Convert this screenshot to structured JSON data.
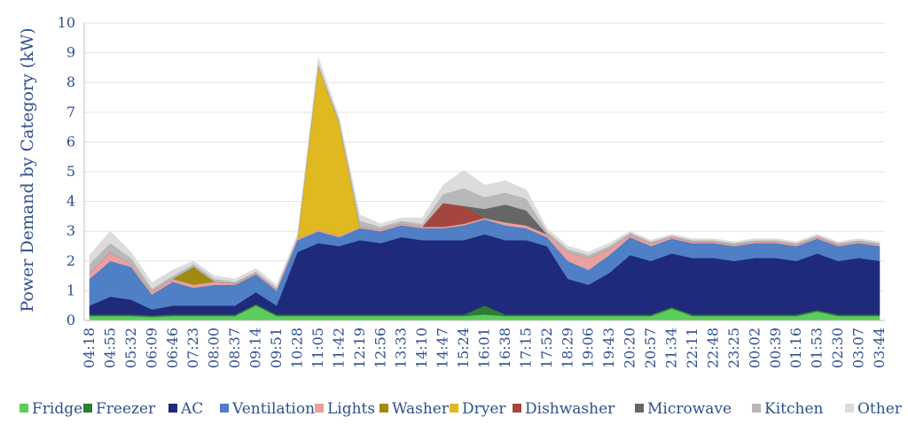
{
  "chart_data": {
    "type": "area",
    "ylabel": "Power Demand by Category (kW)",
    "ylim": [
      0,
      10
    ],
    "yticks": [
      "0",
      "1",
      "2",
      "3",
      "4",
      "5",
      "6",
      "7",
      "8",
      "9",
      "10"
    ],
    "grid": true,
    "legend_position": "bottom",
    "categories": [
      "04:18",
      "04:55",
      "05:32",
      "06:09",
      "06:46",
      "07:23",
      "08:00",
      "08:37",
      "09:14",
      "09:51",
      "10:28",
      "11:05",
      "11:42",
      "12:19",
      "12:56",
      "13:33",
      "14:10",
      "14:47",
      "15:24",
      "16:01",
      "16:38",
      "17:15",
      "17:52",
      "18:29",
      "19:06",
      "19:43",
      "20:20",
      "20:57",
      "21:34",
      "22:11",
      "22:48",
      "23:25",
      "00:02",
      "00:39",
      "01:16",
      "01:53",
      "02:30",
      "03:07",
      "03:44"
    ],
    "series": [
      {
        "name": "Fridge",
        "color": "#5ccc5c",
        "values": [
          0.15,
          0.15,
          0.15,
          0.12,
          0.15,
          0.15,
          0.15,
          0.15,
          0.5,
          0.15,
          0.15,
          0.15,
          0.15,
          0.15,
          0.15,
          0.15,
          0.15,
          0.15,
          0.15,
          0.2,
          0.15,
          0.15,
          0.15,
          0.15,
          0.15,
          0.15,
          0.15,
          0.15,
          0.4,
          0.15,
          0.15,
          0.15,
          0.15,
          0.15,
          0.15,
          0.3,
          0.15,
          0.15,
          0.15
        ]
      },
      {
        "name": "Freezer",
        "color": "#2e7d32",
        "values": [
          0.05,
          0.05,
          0.05,
          0.05,
          0.05,
          0.05,
          0.05,
          0.05,
          0.05,
          0.05,
          0.05,
          0.05,
          0.05,
          0.05,
          0.05,
          0.05,
          0.05,
          0.05,
          0.05,
          0.3,
          0.05,
          0.05,
          0.05,
          0.05,
          0.05,
          0.05,
          0.05,
          0.05,
          0.05,
          0.05,
          0.05,
          0.05,
          0.05,
          0.05,
          0.05,
          0.05,
          0.05,
          0.05,
          0.05
        ]
      },
      {
        "name": "AC",
        "color": "#1f2a7a",
        "values": [
          0.3,
          0.6,
          0.5,
          0.2,
          0.3,
          0.3,
          0.3,
          0.3,
          0.4,
          0.3,
          2.1,
          2.4,
          2.3,
          2.5,
          2.4,
          2.6,
          2.5,
          2.5,
          2.5,
          2.4,
          2.5,
          2.5,
          2.3,
          1.2,
          1.0,
          1.4,
          2.0,
          1.8,
          1.8,
          1.9,
          1.9,
          1.8,
          1.9,
          1.9,
          1.8,
          1.9,
          1.8,
          1.9,
          1.8
        ]
      },
      {
        "name": "Ventilation",
        "color": "#4f7fc4",
        "values": [
          0.9,
          1.2,
          1.1,
          0.5,
          0.8,
          0.6,
          0.7,
          0.7,
          0.6,
          0.5,
          0.4,
          0.4,
          0.3,
          0.4,
          0.4,
          0.4,
          0.4,
          0.4,
          0.5,
          0.5,
          0.5,
          0.4,
          0.3,
          0.6,
          0.5,
          0.6,
          0.6,
          0.5,
          0.5,
          0.5,
          0.5,
          0.5,
          0.5,
          0.5,
          0.5,
          0.5,
          0.5,
          0.5,
          0.5
        ]
      },
      {
        "name": "Lights",
        "color": "#e8a0a0",
        "values": [
          0.2,
          0.3,
          0.1,
          0.1,
          0.1,
          0.1,
          0.1,
          0.05,
          0.05,
          0.05,
          0.05,
          0.05,
          0.05,
          0.05,
          0.05,
          0.05,
          0.05,
          0.05,
          0.05,
          0.05,
          0.1,
          0.1,
          0.1,
          0.3,
          0.4,
          0.2,
          0.1,
          0.1,
          0.05,
          0.05,
          0.05,
          0.05,
          0.05,
          0.05,
          0.05,
          0.05,
          0.05,
          0.05,
          0.05
        ]
      },
      {
        "name": "Washer",
        "color": "#a08a10",
        "values": [
          0,
          0,
          0,
          0,
          0,
          0.6,
          0,
          0,
          0,
          0,
          0,
          0,
          0,
          0,
          0,
          0,
          0,
          0,
          0,
          0,
          0,
          0,
          0,
          0,
          0,
          0,
          0,
          0,
          0,
          0,
          0,
          0,
          0,
          0,
          0,
          0,
          0,
          0,
          0
        ]
      },
      {
        "name": "Dryer",
        "color": "#e0b820",
        "values": [
          0,
          0,
          0,
          0,
          0,
          0,
          0,
          0,
          0,
          0,
          0,
          5.5,
          3.8,
          0,
          0,
          0,
          0,
          0,
          0,
          0,
          0,
          0,
          0,
          0,
          0,
          0,
          0,
          0,
          0,
          0,
          0,
          0,
          0,
          0,
          0,
          0,
          0,
          0,
          0
        ]
      },
      {
        "name": "Dishwasher",
        "color": "#a4463e",
        "values": [
          0,
          0,
          0,
          0,
          0,
          0,
          0,
          0,
          0,
          0,
          0,
          0,
          0,
          0,
          0,
          0,
          0,
          0.8,
          0.6,
          0,
          0,
          0,
          0,
          0,
          0,
          0,
          0,
          0,
          0,
          0,
          0,
          0,
          0,
          0,
          0,
          0,
          0,
          0,
          0
        ]
      },
      {
        "name": "Microwave",
        "color": "#666666",
        "values": [
          0,
          0,
          0,
          0,
          0,
          0,
          0,
          0,
          0,
          0,
          0,
          0,
          0,
          0,
          0,
          0,
          0,
          0,
          0,
          0.3,
          0.6,
          0.5,
          0,
          0,
          0,
          0,
          0,
          0,
          0,
          0,
          0,
          0,
          0,
          0,
          0,
          0,
          0,
          0,
          0
        ]
      },
      {
        "name": "Kitchen",
        "color": "#b8b8b8",
        "values": [
          0.3,
          0.3,
          0.2,
          0.1,
          0.1,
          0.1,
          0.1,
          0.05,
          0.05,
          0.05,
          0.05,
          0.1,
          0.1,
          0.2,
          0.1,
          0.1,
          0.1,
          0.3,
          0.6,
          0.4,
          0.4,
          0.4,
          0.1,
          0.1,
          0.1,
          0.1,
          0.05,
          0.05,
          0.05,
          0.05,
          0.05,
          0.05,
          0.05,
          0.05,
          0.05,
          0.05,
          0.05,
          0.05,
          0.05
        ]
      },
      {
        "name": "Other",
        "color": "#dcdcdc",
        "values": [
          0.3,
          0.4,
          0.2,
          0.2,
          0.2,
          0.1,
          0.1,
          0.1,
          0.1,
          0.1,
          0.1,
          0.2,
          0.1,
          0.2,
          0.1,
          0.1,
          0.2,
          0.3,
          0.6,
          0.4,
          0.4,
          0.3,
          0.1,
          0.1,
          0.1,
          0.1,
          0.05,
          0.05,
          0.05,
          0.05,
          0.05,
          0.05,
          0.05,
          0.05,
          0.05,
          0.05,
          0.05,
          0.05,
          0.05
        ]
      }
    ]
  }
}
